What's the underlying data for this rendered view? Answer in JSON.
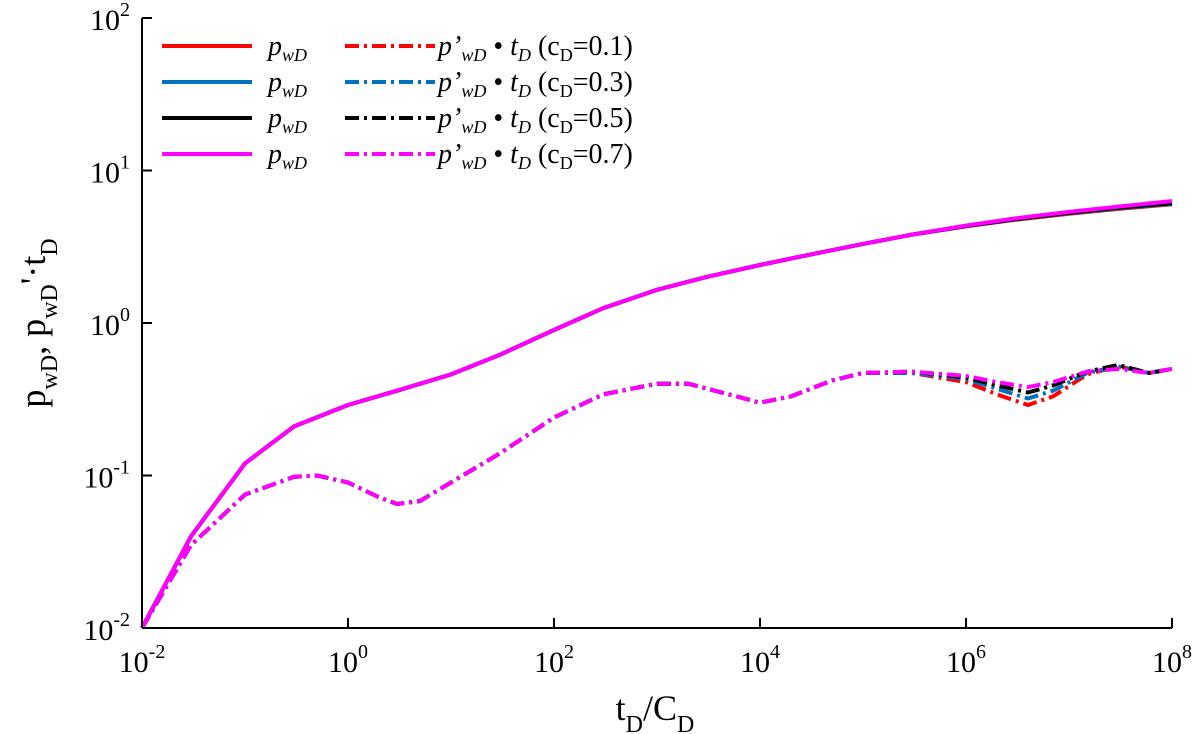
{
  "chart_data": {
    "type": "line",
    "xscale": "log",
    "yscale": "log",
    "xlim": [
      0.01,
      100000000
    ],
    "ylim": [
      0.01,
      100
    ],
    "xlabel": {
      "main": "t",
      "sub1": "D",
      "mid": "/C",
      "sub2": "D"
    },
    "ylabel": {
      "p1": "p",
      "s1": "wD",
      "comma": ", p",
      "s2": "wD",
      "mid": "'·t",
      "s3": "D"
    },
    "x_ticks": [
      {
        "value": 0.01,
        "base": "10",
        "exp": "-2"
      },
      {
        "value": 1,
        "base": "10",
        "exp": "0"
      },
      {
        "value": 100,
        "base": "10",
        "exp": "2"
      },
      {
        "value": 10000,
        "base": "10",
        "exp": "4"
      },
      {
        "value": 1000000,
        "base": "10",
        "exp": "6"
      },
      {
        "value": 100000000,
        "base": "10",
        "exp": "8"
      }
    ],
    "y_ticks": [
      {
        "value": 0.01,
        "base": "10",
        "exp": "-2"
      },
      {
        "value": 0.1,
        "base": "10",
        "exp": "-1"
      },
      {
        "value": 1,
        "base": "10",
        "exp": "0"
      },
      {
        "value": 10,
        "base": "10",
        "exp": "1"
      },
      {
        "value": 100,
        "base": "10",
        "exp": "2"
      }
    ],
    "legend": {
      "placement": "top-left",
      "pw_text": "p",
      "pw_sub": "wD",
      "deriv_text": "p’",
      "deriv_sub": "wD",
      "bullet": "•",
      "td_text": "t",
      "td_sub": "D",
      "paren_open": "(c",
      "cd_sub": "D"
    },
    "series": [
      {
        "cd": "=0.1)",
        "color": "#ff0000",
        "pwd": [
          [
            0.01,
            0.01
          ],
          [
            0.03,
            0.04
          ],
          [
            0.1,
            0.12
          ],
          [
            0.3,
            0.21
          ],
          [
            1,
            0.29
          ],
          [
            3,
            0.36
          ],
          [
            10,
            0.46
          ],
          [
            30,
            0.62
          ],
          [
            100,
            0.9
          ],
          [
            300,
            1.25
          ],
          [
            1000,
            1.65
          ],
          [
            3000,
            2.0
          ],
          [
            10000,
            2.4
          ],
          [
            30000,
            2.8
          ],
          [
            100000,
            3.3
          ],
          [
            300000,
            3.8
          ],
          [
            1000000,
            4.3
          ],
          [
            3000000,
            4.75
          ],
          [
            10000000,
            5.2
          ],
          [
            30000000,
            5.6
          ],
          [
            100000000,
            6.0
          ]
        ],
        "deriv": [
          [
            0.01,
            0.01
          ],
          [
            0.03,
            0.035
          ],
          [
            0.1,
            0.075
          ],
          [
            0.3,
            0.098
          ],
          [
            0.5,
            0.1
          ],
          [
            1,
            0.09
          ],
          [
            2,
            0.072
          ],
          [
            3,
            0.065
          ],
          [
            5,
            0.068
          ],
          [
            10,
            0.09
          ],
          [
            30,
            0.14
          ],
          [
            100,
            0.24
          ],
          [
            300,
            0.34
          ],
          [
            1000,
            0.4
          ],
          [
            2000,
            0.4
          ],
          [
            5000,
            0.34
          ],
          [
            10000,
            0.3
          ],
          [
            20000,
            0.33
          ],
          [
            50000,
            0.42
          ],
          [
            100000,
            0.47
          ],
          [
            300000,
            0.47
          ],
          [
            1000000,
            0.41
          ],
          [
            2000000,
            0.34
          ],
          [
            4000000,
            0.29
          ],
          [
            7000000,
            0.33
          ],
          [
            15000000,
            0.46
          ],
          [
            30000000,
            0.52
          ],
          [
            60000000,
            0.47
          ],
          [
            100000000,
            0.5
          ]
        ]
      },
      {
        "cd": "=0.3)",
        "color": "#0072bd",
        "pwd": [
          [
            0.01,
            0.01
          ],
          [
            0.03,
            0.04
          ],
          [
            0.1,
            0.12
          ],
          [
            0.3,
            0.21
          ],
          [
            1,
            0.29
          ],
          [
            3,
            0.36
          ],
          [
            10,
            0.46
          ],
          [
            30,
            0.62
          ],
          [
            100,
            0.9
          ],
          [
            300,
            1.25
          ],
          [
            1000,
            1.65
          ],
          [
            3000,
            2.0
          ],
          [
            10000,
            2.4
          ],
          [
            30000,
            2.8
          ],
          [
            100000,
            3.3
          ],
          [
            300000,
            3.8
          ],
          [
            1000000,
            4.32
          ],
          [
            3000000,
            4.78
          ],
          [
            10000000,
            5.25
          ],
          [
            30000000,
            5.65
          ],
          [
            100000000,
            6.05
          ]
        ],
        "deriv": [
          [
            0.01,
            0.01
          ],
          [
            0.03,
            0.035
          ],
          [
            0.1,
            0.075
          ],
          [
            0.3,
            0.098
          ],
          [
            0.5,
            0.1
          ],
          [
            1,
            0.09
          ],
          [
            2,
            0.072
          ],
          [
            3,
            0.065
          ],
          [
            5,
            0.068
          ],
          [
            10,
            0.09
          ],
          [
            30,
            0.14
          ],
          [
            100,
            0.24
          ],
          [
            300,
            0.34
          ],
          [
            1000,
            0.4
          ],
          [
            2000,
            0.4
          ],
          [
            5000,
            0.34
          ],
          [
            10000,
            0.3
          ],
          [
            20000,
            0.33
          ],
          [
            50000,
            0.42
          ],
          [
            100000,
            0.47
          ],
          [
            300000,
            0.47
          ],
          [
            1000000,
            0.43
          ],
          [
            2000000,
            0.37
          ],
          [
            4000000,
            0.32
          ],
          [
            7000000,
            0.36
          ],
          [
            15000000,
            0.47
          ],
          [
            30000000,
            0.52
          ],
          [
            60000000,
            0.47
          ],
          [
            100000000,
            0.5
          ]
        ]
      },
      {
        "cd": "=0.5)",
        "color": "#000000",
        "pwd": [
          [
            0.01,
            0.01
          ],
          [
            0.03,
            0.04
          ],
          [
            0.1,
            0.12
          ],
          [
            0.3,
            0.21
          ],
          [
            1,
            0.29
          ],
          [
            3,
            0.36
          ],
          [
            10,
            0.46
          ],
          [
            30,
            0.62
          ],
          [
            100,
            0.9
          ],
          [
            300,
            1.25
          ],
          [
            1000,
            1.65
          ],
          [
            3000,
            2.0
          ],
          [
            10000,
            2.4
          ],
          [
            30000,
            2.8
          ],
          [
            100000,
            3.3
          ],
          [
            300000,
            3.8
          ],
          [
            1000000,
            4.33
          ],
          [
            3000000,
            4.8
          ],
          [
            10000000,
            5.28
          ],
          [
            30000000,
            5.7
          ],
          [
            100000000,
            6.1
          ]
        ],
        "deriv": [
          [
            0.01,
            0.01
          ],
          [
            0.03,
            0.035
          ],
          [
            0.1,
            0.075
          ],
          [
            0.3,
            0.098
          ],
          [
            0.5,
            0.1
          ],
          [
            1,
            0.09
          ],
          [
            2,
            0.072
          ],
          [
            3,
            0.065
          ],
          [
            5,
            0.068
          ],
          [
            10,
            0.09
          ],
          [
            30,
            0.14
          ],
          [
            100,
            0.24
          ],
          [
            300,
            0.34
          ],
          [
            1000,
            0.4
          ],
          [
            2000,
            0.4
          ],
          [
            5000,
            0.34
          ],
          [
            10000,
            0.3
          ],
          [
            20000,
            0.33
          ],
          [
            50000,
            0.42
          ],
          [
            100000,
            0.47
          ],
          [
            300000,
            0.48
          ],
          [
            1000000,
            0.44
          ],
          [
            2000000,
            0.39
          ],
          [
            4000000,
            0.35
          ],
          [
            7000000,
            0.39
          ],
          [
            15000000,
            0.48
          ],
          [
            30000000,
            0.53
          ],
          [
            60000000,
            0.47
          ],
          [
            100000000,
            0.5
          ]
        ]
      },
      {
        "cd": "=0.7)",
        "color": "#ff00ff",
        "pwd": [
          [
            0.01,
            0.01
          ],
          [
            0.03,
            0.04
          ],
          [
            0.1,
            0.12
          ],
          [
            0.3,
            0.21
          ],
          [
            1,
            0.29
          ],
          [
            3,
            0.36
          ],
          [
            10,
            0.46
          ],
          [
            30,
            0.62
          ],
          [
            100,
            0.9
          ],
          [
            300,
            1.25
          ],
          [
            1000,
            1.65
          ],
          [
            3000,
            2.0
          ],
          [
            10000,
            2.4
          ],
          [
            30000,
            2.8
          ],
          [
            100000,
            3.3
          ],
          [
            300000,
            3.8
          ],
          [
            1000000,
            4.35
          ],
          [
            3000000,
            4.85
          ],
          [
            10000000,
            5.35
          ],
          [
            30000000,
            5.8
          ],
          [
            100000000,
            6.3
          ]
        ],
        "deriv": [
          [
            0.01,
            0.01
          ],
          [
            0.03,
            0.035
          ],
          [
            0.1,
            0.075
          ],
          [
            0.3,
            0.098
          ],
          [
            0.5,
            0.1
          ],
          [
            1,
            0.09
          ],
          [
            2,
            0.072
          ],
          [
            3,
            0.065
          ],
          [
            5,
            0.068
          ],
          [
            10,
            0.09
          ],
          [
            30,
            0.14
          ],
          [
            100,
            0.24
          ],
          [
            300,
            0.34
          ],
          [
            1000,
            0.4
          ],
          [
            2000,
            0.4
          ],
          [
            5000,
            0.34
          ],
          [
            10000,
            0.3
          ],
          [
            20000,
            0.33
          ],
          [
            50000,
            0.42
          ],
          [
            100000,
            0.47
          ],
          [
            300000,
            0.48
          ],
          [
            1000000,
            0.45
          ],
          [
            2000000,
            0.41
          ],
          [
            4000000,
            0.38
          ],
          [
            7000000,
            0.41
          ],
          [
            15000000,
            0.48
          ],
          [
            30000000,
            0.5
          ],
          [
            60000000,
            0.47
          ],
          [
            100000000,
            0.5
          ]
        ]
      }
    ]
  }
}
